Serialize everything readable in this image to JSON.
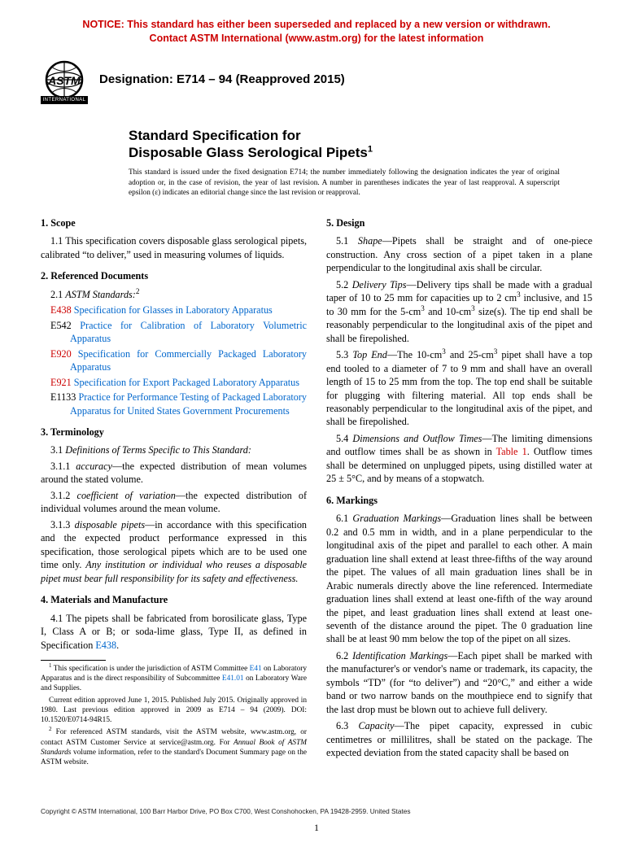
{
  "notice": {
    "line1": "NOTICE: This standard has either been superseded and replaced by a new version or withdrawn.",
    "line2": "Contact ASTM International (www.astm.org) for the latest information",
    "color": "#cc0000"
  },
  "logo": {
    "text": "INTERNATIONAL"
  },
  "designation": "Designation: E714 – 94 (Reapproved 2015)",
  "title": {
    "line1": "Standard Specification for",
    "line2": "Disposable Glass Serological Pipets",
    "super": "1"
  },
  "issuance": "This standard is issued under the fixed designation E714; the number immediately following the designation indicates the year of original adoption or, in the case of revision, the year of last revision. A number in parentheses indicates the year of last reapproval. A superscript epsilon (ε) indicates an editorial change since the last revision or reapproval.",
  "sections": {
    "scope": {
      "head": "1. Scope",
      "p1": "1.1 This specification covers disposable glass serological pipets, calibrated “to deliver,” used in measuring volumes of liquids."
    },
    "refdocs": {
      "head": "2. Referenced Documents",
      "p1_pre": "2.1 ",
      "p1_italic": "ASTM Standards:",
      "p1_sup": "2",
      "items": [
        {
          "code": "E438",
          "code_red": true,
          "text": "Specification for Glasses in Laboratory Apparatus"
        },
        {
          "code": "E542",
          "code_red": false,
          "text": "Practice for Calibration of Laboratory Volumetric Apparatus"
        },
        {
          "code": "E920",
          "code_red": true,
          "text": "Specification for Commercially Packaged Laboratory Apparatus"
        },
        {
          "code": "E921",
          "code_red": true,
          "text": "Specification for Export Packaged Laboratory Apparatus"
        },
        {
          "code": "E1133",
          "code_red": false,
          "text": "Practice for Performance Testing of Packaged Laboratory Apparatus for United States Government Procurements"
        }
      ]
    },
    "terminology": {
      "head": "3. Terminology",
      "p1": "3.1 ",
      "p1_italic": "Definitions of Terms Specific to This Standard:",
      "d1_num": "3.1.1 ",
      "d1_term": "accuracy",
      "d1_def": "—the expected distribution of mean volumes around the stated volume.",
      "d2_num": "3.1.2 ",
      "d2_term": "coefficient of variation",
      "d2_def": "—the expected distribution of individual volumes around the mean volume.",
      "d3_num": "3.1.3 ",
      "d3_term": "disposable pipets",
      "d3_def_a": "—in accordance with this specification and the expected product performance expressed in this specification, those serological pipets which are to be used one time only. ",
      "d3_def_b": "Any institution or individual who reuses a disposable pipet must bear full responsibility for its safety and effectiveness."
    },
    "materials": {
      "head": "4. Materials and Manufacture",
      "p1_a": "4.1 The pipets shall be fabricated from borosilicate glass, Type I, Class A or B; or soda-lime glass, Type II, as defined in Specification ",
      "p1_link": "E438",
      "p1_b": "."
    },
    "design": {
      "head": "5. Design",
      "p1_num": "5.1 ",
      "p1_term": "Shape",
      "p1_def": "—Pipets shall be straight and of one-piece construction. Any cross section of a pipet taken in a plane perpendicular to the longitudinal axis shall be circular.",
      "p2_num": "5.2 ",
      "p2_term": "Delivery Tips",
      "p2_def_a": "—Delivery tips shall be made with a gradual taper of 10 to 25 mm for capacities up to 2 cm",
      "p2_def_b": " inclusive, and 15 to 30 mm for the 5-cm",
      "p2_def_c": " and 10-cm",
      "p2_def_d": " size(s). The tip end shall be reasonably perpendicular to the longitudinal axis of the pipet and shall be firepolished.",
      "p3_num": "5.3 ",
      "p3_term": "Top End",
      "p3_def_a": "—The 10-cm",
      "p3_def_b": " and 25-cm",
      "p3_def_c": " pipet shall have a top end tooled to a diameter of 7 to 9 mm and shall have an overall length of 15 to 25 mm from the top. The top end shall be suitable for plugging with filtering material. All top ends shall be reasonably perpendicular to the longitudinal axis of the pipet, and shall be firepolished.",
      "p4_num": "5.4 ",
      "p4_term": "Dimensions and Outflow Times",
      "p4_def_a": "—The limiting dimensions and outflow times shall be as shown in ",
      "p4_link": "Table 1",
      "p4_def_b": ". Outflow times shall be determined on unplugged pipets, using distilled water at 25 ± 5°C, and by means of a stopwatch."
    },
    "markings": {
      "head": "6. Markings",
      "p1_num": "6.1 ",
      "p1_term": "Graduation Markings",
      "p1_def": "—Graduation lines shall be between 0.2 and 0.5 mm in width, and in a plane perpendicular to the longitudinal axis of the pipet and parallel to each other. A main graduation line shall extend at least three-fifths of the way around the pipet. The values of all main graduation lines shall be in Arabic numerals directly above the line referenced. Intermediate graduation lines shall extend at least one-fifth of the way around the pipet, and least graduation lines shall extend at least one-seventh of the distance around the pipet. The 0 graduation line shall be at least 90 mm below the top of the pipet on all sizes.",
      "p2_num": "6.2 ",
      "p2_term": "Identification Markings",
      "p2_def": "—Each pipet shall be marked with the manufacturer's or vendor's name or trademark, its capacity, the symbols “TD” (for “to deliver”) and “20°C,” and either a wide band or two narrow bands on the mouthpiece end to signify that the last drop must be blown out to achieve full delivery.",
      "p3_num": "6.3 ",
      "p3_term": "Capacity",
      "p3_def": "—The pipet capacity, expressed in cubic centimetres or millilitres, shall be stated on the package. The expected deviation from the stated capacity shall be based on"
    }
  },
  "footnotes": {
    "f1_a": " This specification is under the jurisdiction of ASTM Committee ",
    "f1_link1": "E41",
    "f1_b": " on Laboratory Apparatus and is the direct responsibility of Subcommittee ",
    "f1_link2": "E41.01",
    "f1_c": " on Laboratory Ware and Supplies.",
    "f1_p2": "Current edition approved June 1, 2015. Published July 2015. Originally approved in 1980. Last previous edition approved in 2009 as E714 – 94 (2009). DOI: 10.1520/E0714-94R15.",
    "f2_a": " For referenced ASTM standards, visit the ASTM website, www.astm.org, or contact ASTM Customer Service at service@astm.org. For ",
    "f2_italic": "Annual Book of ASTM Standards",
    "f2_b": " volume information, refer to the standard's Document Summary page on the ASTM website."
  },
  "copyright": "Copyright © ASTM International, 100 Barr Harbor Drive, PO Box C700, West Conshohocken, PA 19428-2959. United States",
  "pagenum": "1",
  "colors": {
    "link": "#0066cc",
    "redlink": "#cc0000",
    "text": "#000000",
    "bg": "#ffffff"
  }
}
